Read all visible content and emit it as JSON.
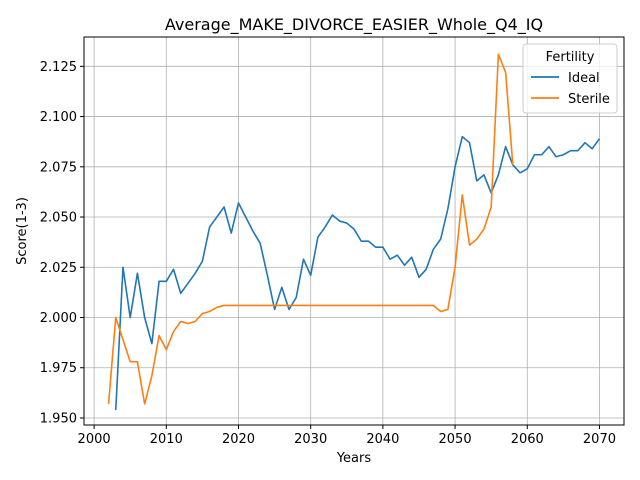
{
  "chart_data": {
    "type": "line",
    "title": "Average_MAKE_DIVORCE_EASIER_Whole_Q4_IQ",
    "xlabel": "Years",
    "ylabel": "Score(1-3)",
    "xlim": [
      1998.6,
      2073.4
    ],
    "ylim": [
      1.9465,
      2.1396
    ],
    "xticks": [
      2000,
      2010,
      2020,
      2030,
      2040,
      2050,
      2060,
      2070
    ],
    "yticks": [
      1.95,
      1.975,
      2.0,
      2.025,
      2.05,
      2.075,
      2.1,
      2.125
    ],
    "xtick_labels": [
      "2000",
      "2010",
      "2020",
      "2030",
      "2040",
      "2050",
      "2060",
      "2070"
    ],
    "ytick_labels": [
      "1.950",
      "1.975",
      "2.000",
      "2.025",
      "2.050",
      "2.075",
      "2.100",
      "2.125"
    ],
    "grid": true,
    "legend": {
      "title": "Fertility",
      "placement": "top-right"
    },
    "series": [
      {
        "name": "Ideal",
        "color": "#1f77b4",
        "points": [
          [
            2003,
            1.954
          ],
          [
            2004,
            2.025
          ],
          [
            2005,
            2.0
          ],
          [
            2006,
            2.022
          ],
          [
            2007,
            2.0
          ],
          [
            2008,
            1.987
          ],
          [
            2009,
            2.018
          ],
          [
            2010,
            2.018
          ],
          [
            2011,
            2.024
          ],
          [
            2012,
            2.012
          ],
          [
            2013,
            2.017
          ],
          [
            2014,
            2.022
          ],
          [
            2015,
            2.028
          ],
          [
            2016,
            2.045
          ],
          [
            2017,
            2.05
          ],
          [
            2018,
            2.055
          ],
          [
            2019,
            2.042
          ],
          [
            2020,
            2.057
          ],
          [
            2021,
            2.05
          ],
          [
            2022,
            2.043
          ],
          [
            2023,
            2.037
          ],
          [
            2024,
            2.021
          ],
          [
            2025,
            2.004
          ],
          [
            2026,
            2.015
          ],
          [
            2027,
            2.004
          ],
          [
            2028,
            2.01
          ],
          [
            2029,
            2.029
          ],
          [
            2030,
            2.021
          ],
          [
            2031,
            2.04
          ],
          [
            2032,
            2.045
          ],
          [
            2033,
            2.051
          ],
          [
            2034,
            2.048
          ],
          [
            2035,
            2.047
          ],
          [
            2036,
            2.044
          ],
          [
            2037,
            2.038
          ],
          [
            2038,
            2.038
          ],
          [
            2039,
            2.035
          ],
          [
            2040,
            2.035
          ],
          [
            2041,
            2.029
          ],
          [
            2042,
            2.031
          ],
          [
            2043,
            2.026
          ],
          [
            2044,
            2.03
          ],
          [
            2045,
            2.02
          ],
          [
            2046,
            2.024
          ],
          [
            2047,
            2.034
          ],
          [
            2048,
            2.039
          ],
          [
            2049,
            2.054
          ],
          [
            2050,
            2.075
          ],
          [
            2051,
            2.09
          ],
          [
            2052,
            2.087
          ],
          [
            2053,
            2.068
          ],
          [
            2054,
            2.071
          ],
          [
            2055,
            2.062
          ],
          [
            2056,
            2.071
          ],
          [
            2057,
            2.085
          ],
          [
            2058,
            2.076
          ],
          [
            2059,
            2.072
          ],
          [
            2060,
            2.074
          ],
          [
            2061,
            2.081
          ],
          [
            2062,
            2.081
          ],
          [
            2063,
            2.085
          ],
          [
            2064,
            2.08
          ],
          [
            2065,
            2.081
          ],
          [
            2066,
            2.083
          ],
          [
            2067,
            2.083
          ],
          [
            2068,
            2.087
          ],
          [
            2069,
            2.084
          ],
          [
            2070,
            2.089
          ]
        ]
      },
      {
        "name": "Sterile",
        "color": "#ff7f0e",
        "points": [
          [
            2002,
            1.957
          ],
          [
            2003,
            2.0
          ],
          [
            2004,
            1.989
          ],
          [
            2005,
            1.978
          ],
          [
            2006,
            1.978
          ],
          [
            2007,
            1.957
          ],
          [
            2008,
            1.971
          ],
          [
            2009,
            1.991
          ],
          [
            2010,
            1.984
          ],
          [
            2011,
            1.993
          ],
          [
            2012,
            1.998
          ],
          [
            2013,
            1.997
          ],
          [
            2014,
            1.998
          ],
          [
            2015,
            2.002
          ],
          [
            2016,
            2.003
          ],
          [
            2017,
            2.005
          ],
          [
            2018,
            2.006
          ],
          [
            2019,
            2.006
          ],
          [
            2020,
            2.006
          ],
          [
            2021,
            2.006
          ],
          [
            2022,
            2.006
          ],
          [
            2023,
            2.006
          ],
          [
            2024,
            2.006
          ],
          [
            2025,
            2.006
          ],
          [
            2026,
            2.006
          ],
          [
            2027,
            2.006
          ],
          [
            2028,
            2.006
          ],
          [
            2029,
            2.006
          ],
          [
            2030,
            2.006
          ],
          [
            2031,
            2.006
          ],
          [
            2032,
            2.006
          ],
          [
            2033,
            2.006
          ],
          [
            2034,
            2.006
          ],
          [
            2035,
            2.006
          ],
          [
            2036,
            2.006
          ],
          [
            2037,
            2.006
          ],
          [
            2038,
            2.006
          ],
          [
            2039,
            2.006
          ],
          [
            2040,
            2.006
          ],
          [
            2041,
            2.006
          ],
          [
            2042,
            2.006
          ],
          [
            2043,
            2.006
          ],
          [
            2044,
            2.006
          ],
          [
            2045,
            2.006
          ],
          [
            2046,
            2.006
          ],
          [
            2047,
            2.006
          ],
          [
            2048,
            2.003
          ],
          [
            2049,
            2.004
          ],
          [
            2050,
            2.025
          ],
          [
            2051,
            2.061
          ],
          [
            2052,
            2.036
          ],
          [
            2053,
            2.039
          ],
          [
            2054,
            2.044
          ],
          [
            2055,
            2.055
          ],
          [
            2056,
            2.131
          ],
          [
            2057,
            2.122
          ],
          [
            2058,
            2.076
          ]
        ]
      }
    ]
  }
}
